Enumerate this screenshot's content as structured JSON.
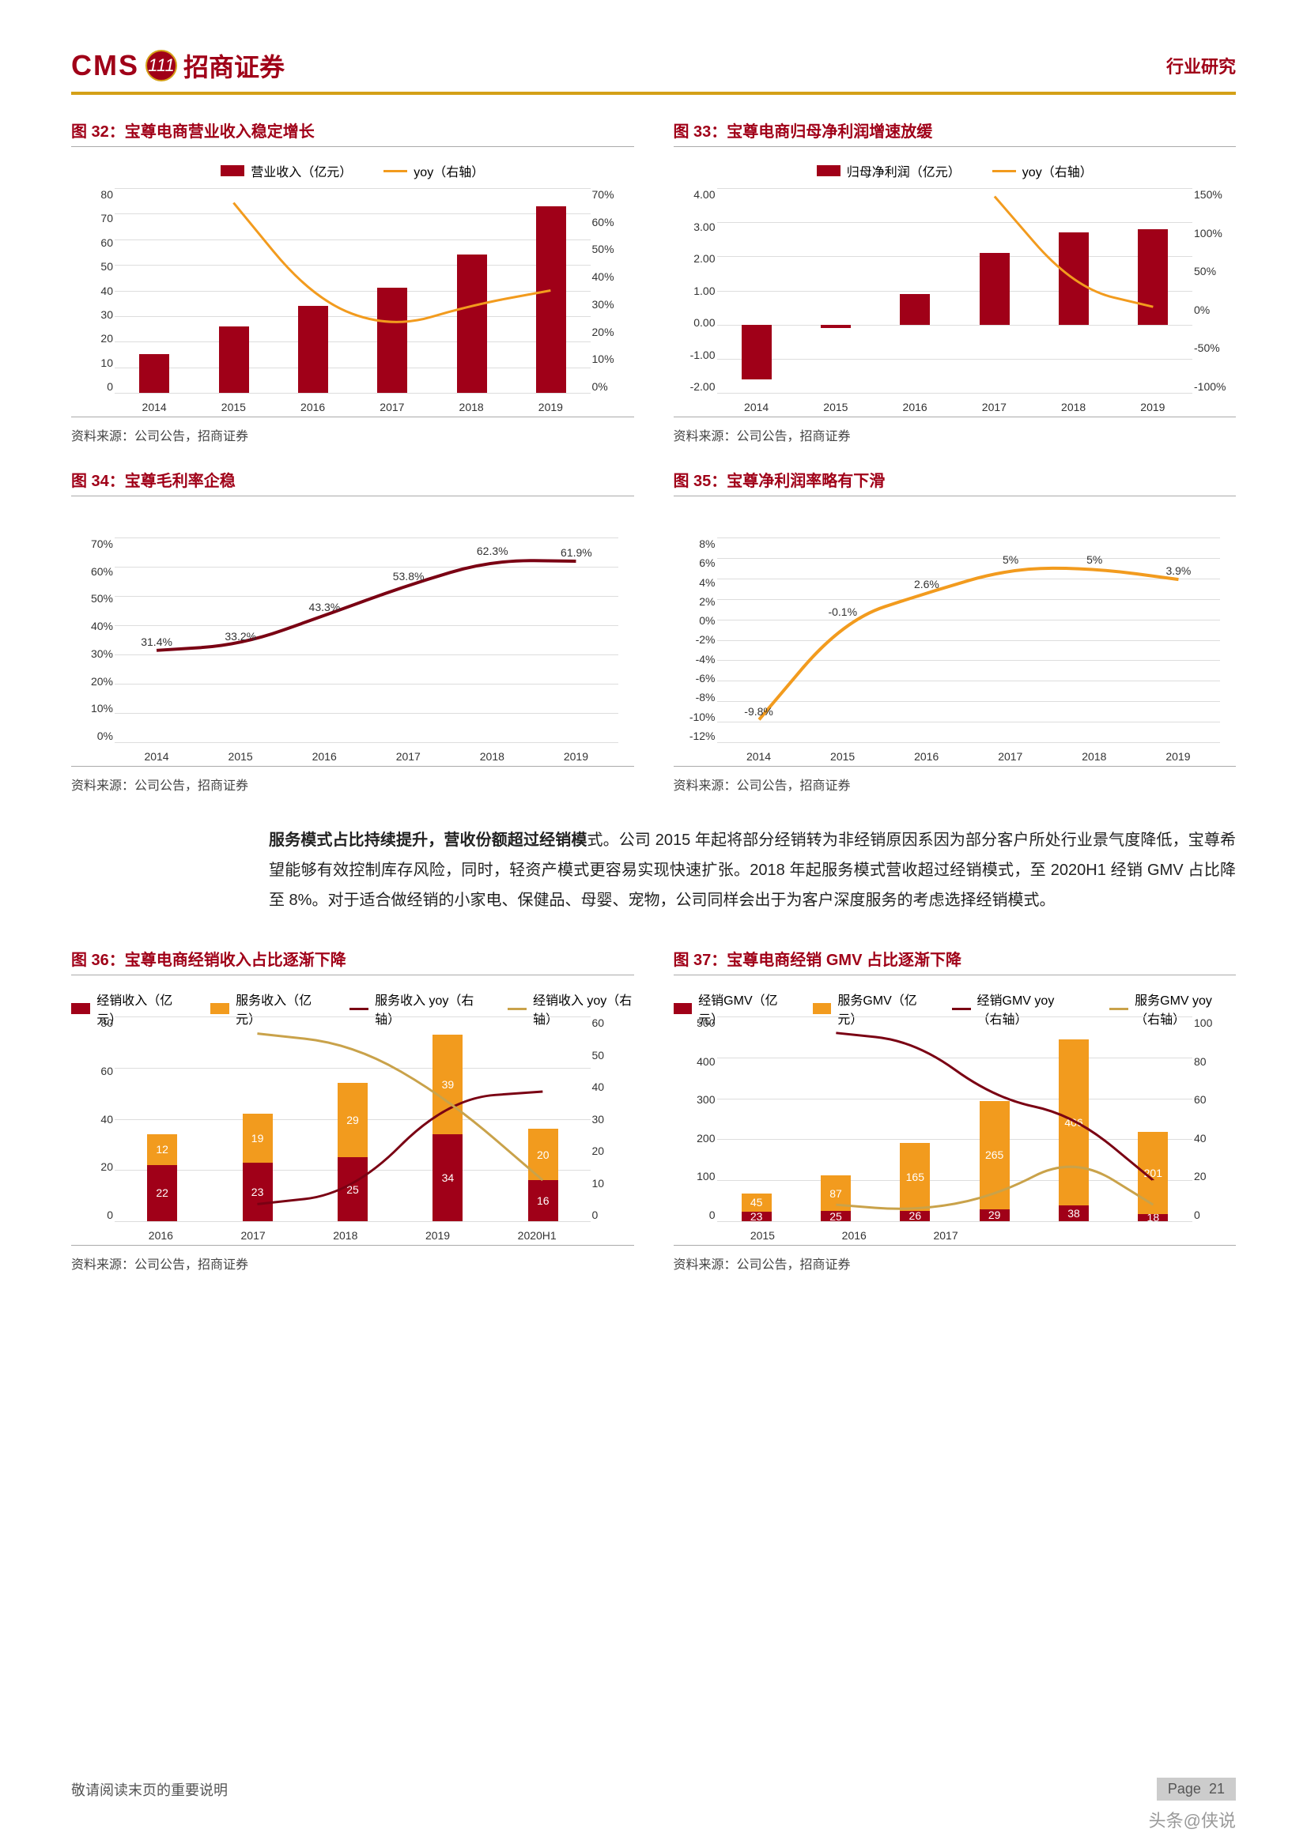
{
  "header": {
    "logo_cms": "CMS",
    "logo_badge": "111",
    "logo_cn": "招商证券",
    "section": "行业研究"
  },
  "colors": {
    "bar_red": "#a00018",
    "bar_orange": "#f29b1e",
    "line_orange": "#f29b1e",
    "line_red": "#7a0013",
    "line_gold": "#c9a24a",
    "title_red": "#a00018",
    "underline_gold": "#d4a017",
    "grid": "#dddddd"
  },
  "fig32": {
    "title": "图 32：宝尊电商营业收入稳定增长",
    "legend": [
      "营业收入（亿元）",
      "yoy（右轴）"
    ],
    "legend_colors": [
      "#a00018",
      "#f29b1e"
    ],
    "categories": [
      "2014",
      "2015",
      "2016",
      "2017",
      "2018",
      "2019"
    ],
    "bar_values": [
      15,
      26,
      34,
      41,
      54,
      73
    ],
    "bar_color": "#a00018",
    "y_left": {
      "min": 0,
      "max": 80,
      "step": 10,
      "fmt": ""
    },
    "line_values": [
      null,
      65,
      32,
      22,
      30,
      35
    ],
    "line_color": "#f29b1e",
    "y_right": {
      "min": 0,
      "max": 70,
      "step": 10,
      "fmt": "%"
    },
    "source": "资料来源：公司公告，招商证券"
  },
  "fig33": {
    "title": "图 33：宝尊电商归母净利润增速放缓",
    "legend": [
      "归母净利润（亿元）",
      "yoy（右轴）"
    ],
    "legend_colors": [
      "#a00018",
      "#f29b1e"
    ],
    "categories": [
      "2014",
      "2015",
      "2016",
      "2017",
      "2018",
      "2019"
    ],
    "bar_values": [
      -1.6,
      -0.1,
      0.9,
      2.1,
      2.7,
      2.8
    ],
    "bar_color": "#a00018",
    "y_left": {
      "min": -2,
      "max": 4,
      "step": 1,
      "fmt": ".00"
    },
    "line_values": [
      null,
      null,
      null,
      140,
      28,
      5
    ],
    "line_color": "#f29b1e",
    "y_right": {
      "min": -100,
      "max": 150,
      "step": 50,
      "fmt": "%"
    },
    "source": "资料来源：公司公告，招商证券"
  },
  "fig34": {
    "title": "图 34：宝尊毛利率企稳",
    "categories": [
      "2014",
      "2015",
      "2016",
      "2017",
      "2018",
      "2019"
    ],
    "values": [
      31.4,
      33.2,
      43.3,
      53.8,
      62.3,
      61.9
    ],
    "line_color": "#7a0013",
    "y": {
      "min": 0,
      "max": 70,
      "step": 10,
      "fmt": "%"
    },
    "show_labels": true,
    "source": "资料来源：公司公告，招商证券"
  },
  "fig35": {
    "title": "图 35：宝尊净利润率略有下滑",
    "categories": [
      "2014",
      "2015",
      "2016",
      "2017",
      "2018",
      "2019"
    ],
    "values": [
      -9.8,
      -0.1,
      2.6,
      5.0,
      5.0,
      3.9
    ],
    "line_color": "#f29b1e",
    "y": {
      "min": -12,
      "max": 8,
      "step": 2,
      "fmt": "%"
    },
    "show_labels": true,
    "source": "资料来源：公司公告，招商证券"
  },
  "body_text": "服务模式占比持续提升，营收份额超过经销模式。公司 2015 年起将部分经销转为非经销原因系因为部分客户所处行业景气度降低，宝尊希望能够有效控制库存风险，同时，轻资产模式更容易实现快速扩张。2018 年起服务模式营收超过经销模式，至 2020H1 经销 GMV 占比降至 8%。对于适合做经销的小家电、保健品、母婴、宠物，公司同样会出于为客户深度服务的考虑选择经销模式。",
  "body_bold_end_idx": 20,
  "fig36": {
    "title": "图 36：宝尊电商经销收入占比逐渐下降",
    "legend_bars": [
      "经销收入（亿元）",
      "服务收入（亿元）"
    ],
    "legend_lines": [
      "服务收入 yoy（右轴）",
      "经销收入 yoy（右轴）"
    ],
    "bar_colors": [
      "#a00018",
      "#f29b1e"
    ],
    "line_colors": [
      "#7a0013",
      "#c9a24a"
    ],
    "categories": [
      "2016",
      "2017",
      "2018",
      "2019",
      "2020H1"
    ],
    "stack_a": [
      22,
      23,
      25,
      34,
      16
    ],
    "stack_b": [
      12,
      19,
      29,
      39,
      20
    ],
    "y_left": {
      "min": 0,
      "max": 80,
      "step": 20,
      "fmt": ""
    },
    "line_a": [
      null,
      55,
      52,
      36,
      12
    ],
    "line_b": [
      null,
      5,
      8,
      36,
      38
    ],
    "y_right": {
      "min": 0,
      "max": 60,
      "step": 10,
      "fmt": ""
    },
    "source": "资料来源：公司公告，招商证券"
  },
  "fig37": {
    "title": "图 37：宝尊电商经销 GMV 占比逐渐下降",
    "legend_bars": [
      "经销GMV（亿元）",
      "服务GMV（亿元）"
    ],
    "legend_lines": [
      "经销GMV yoy（右轴）",
      "服务GMV yoy（右轴）"
    ],
    "bar_colors": [
      "#a00018",
      "#f29b1e"
    ],
    "line_colors": [
      "#7a0013",
      "#c9a24a"
    ],
    "categories": [
      "2015",
      "2016",
      "2017",
      "",
      "",
      ""
    ],
    "xlabels_visible": [
      "2015",
      "2016",
      "2017",
      "",
      "",
      ""
    ],
    "stack_a": [
      23,
      25,
      26,
      29,
      38,
      18
    ],
    "stack_b": [
      45,
      87,
      165,
      265,
      406,
      201
    ],
    "y_left": {
      "min": 0,
      "max": 500,
      "step": 100,
      "fmt": ""
    },
    "line_a": [
      null,
      8,
      5,
      12,
      32,
      8
    ],
    "line_b": [
      null,
      92,
      88,
      60,
      52,
      20
    ],
    "y_right": {
      "min": 0,
      "max": 100,
      "step": 20,
      "fmt": ""
    },
    "source": "资料来源：公司公告，招商证券"
  },
  "footer": {
    "disclaimer": "敬请阅读末页的重要说明",
    "page_label": "Page",
    "page_num": "21"
  },
  "watermark": "头条@侠说"
}
